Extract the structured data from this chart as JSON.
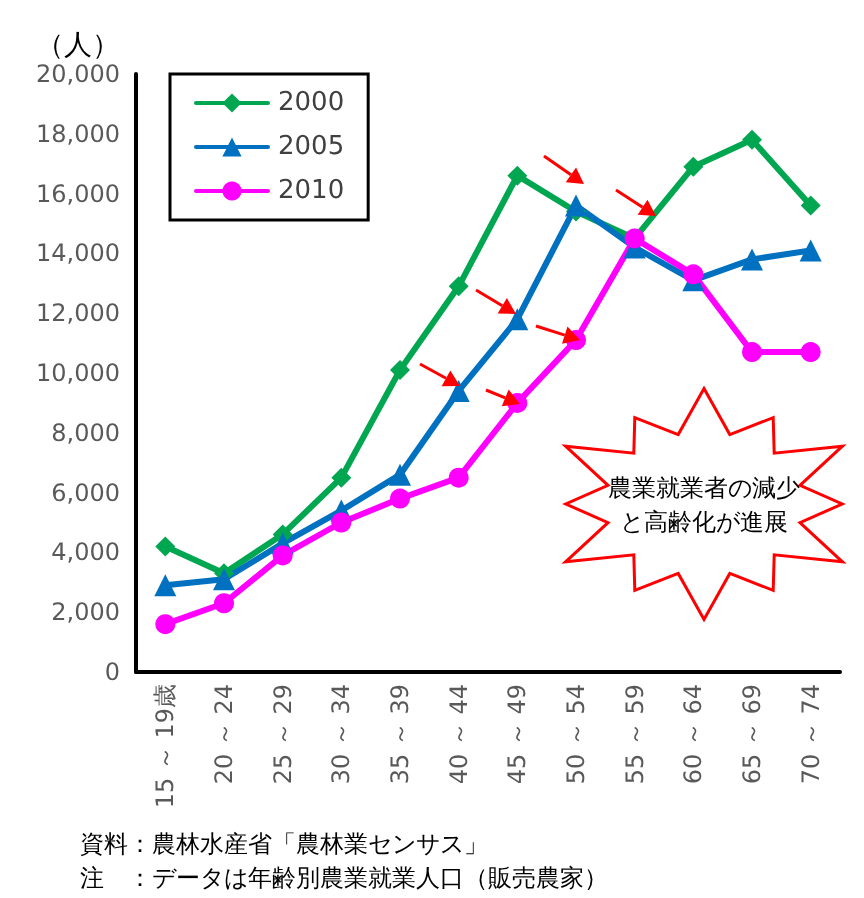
{
  "chart_data": {
    "type": "line",
    "ylabel": "（人）",
    "categories": [
      "15 ～ 19歳",
      "20 ～ 24",
      "25 ～ 29",
      "30 ～ 34",
      "35 ～ 39",
      "40 ～ 44",
      "45 ～ 49",
      "50 ～ 54",
      "55 ～ 59",
      "60 ～ 64",
      "65 ～ 69",
      "70 ～ 74"
    ],
    "series": [
      {
        "name": "2000",
        "color": "#00a650",
        "marker": "diamond",
        "values": [
          4200,
          3300,
          4600,
          6500,
          10100,
          12900,
          16600,
          15400,
          14500,
          16900,
          17800,
          15600
        ]
      },
      {
        "name": "2005",
        "color": "#0070c0",
        "marker": "triangle",
        "values": [
          2900,
          3100,
          4300,
          5400,
          6600,
          9400,
          11800,
          15600,
          14200,
          13100,
          13800,
          14100
        ]
      },
      {
        "name": "2010",
        "color": "#ff00ff",
        "marker": "circle",
        "values": [
          1600,
          2300,
          3900,
          5000,
          5800,
          6500,
          9000,
          11100,
          14500,
          13300,
          10700,
          10700
        ]
      }
    ],
    "ylim": [
      0,
      20000
    ],
    "yticks": [
      0,
      {
        "value": 2000,
        "label": "2,000"
      },
      {
        "value": 4000,
        "label": "4,000"
      },
      {
        "value": 6000,
        "label": "6,000"
      },
      {
        "value": 8000,
        "label": "8,000"
      },
      {
        "value": 10000,
        "label": "10,000"
      },
      {
        "value": 12000,
        "label": "12,000"
      },
      {
        "value": 14000,
        "label": "14,000"
      },
      {
        "value": 16000,
        "label": "16,000"
      },
      {
        "value": 18000,
        "label": "18,000"
      },
      {
        "value": 20000,
        "label": "20,000"
      }
    ],
    "grid": false,
    "legend": "top left",
    "line_style": "solid",
    "annotations": [
      "農業就業者の減少と高齢化が進展",
      "資料：農林水産省「農林業センサス」",
      "注　：データは年齢別農業就業人口（販売農家）"
    ]
  }
}
